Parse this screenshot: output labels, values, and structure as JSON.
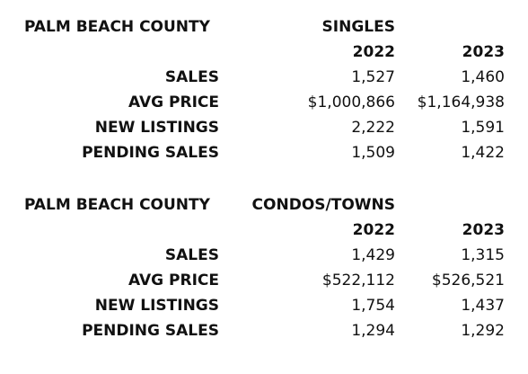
{
  "sections": [
    {
      "title": "PALM BEACH COUNTY",
      "group": "SINGLES",
      "years": [
        "2022",
        "2023"
      ],
      "rows": [
        {
          "label": "SALES",
          "values": [
            "1,527",
            "1,460"
          ]
        },
        {
          "label": "AVG PRICE",
          "values": [
            "$1,000,866",
            "$1,164,938"
          ]
        },
        {
          "label": "NEW LISTINGS",
          "values": [
            "2,222",
            "1,591"
          ]
        },
        {
          "label": "PENDING SALES",
          "values": [
            "1,509",
            "1,422"
          ]
        }
      ]
    },
    {
      "title": "PALM BEACH COUNTY",
      "group": "CONDOS/TOWNS",
      "years": [
        "2022",
        "2023"
      ],
      "rows": [
        {
          "label": "SALES",
          "values": [
            "1,429",
            "1,315"
          ]
        },
        {
          "label": "AVG PRICE",
          "values": [
            "$522,112",
            "$526,521"
          ]
        },
        {
          "label": "NEW LISTINGS",
          "values": [
            "1,754",
            "1,437"
          ]
        },
        {
          "label": "PENDING SALES",
          "values": [
            "1,294",
            "1,292"
          ]
        }
      ]
    }
  ]
}
